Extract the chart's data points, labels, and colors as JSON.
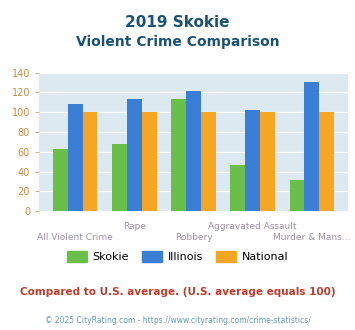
{
  "title_line1": "2019 Skokie",
  "title_line2": "Violent Crime Comparison",
  "categories": [
    "All Violent Crime",
    "Rape",
    "Robbery",
    "Aggravated Assault",
    "Murder & Mans..."
  ],
  "category_labels_top": [
    "",
    "Rape",
    "",
    "Aggravated Assault",
    ""
  ],
  "category_labels_bot": [
    "All Violent Crime",
    "",
    "Robbery",
    "",
    "Murder & Mans..."
  ],
  "skokie": [
    63,
    68,
    113,
    47,
    32
  ],
  "illinois": [
    108,
    113,
    121,
    102,
    130
  ],
  "national": [
    100,
    100,
    100,
    100,
    100
  ],
  "bar_colors": {
    "skokie": "#6abf4b",
    "illinois": "#3a7fd5",
    "national": "#f5a623"
  },
  "ylim": [
    0,
    140
  ],
  "yticks": [
    0,
    20,
    40,
    60,
    80,
    100,
    120,
    140
  ],
  "legend_labels": [
    "Skokie",
    "Illinois",
    "National"
  ],
  "footnote1": "Compared to U.S. average. (U.S. average equals 100)",
  "footnote2": "© 2025 CityRating.com - https://www.cityrating.com/crime-statistics/",
  "bg_color": "#dce9f0",
  "title_color": "#1a5276",
  "axis_label_color": "#9b8faa",
  "footnote1_color": "#c0392b",
  "footnote2_color": "#6699bb",
  "ytick_color": "#cc8844"
}
